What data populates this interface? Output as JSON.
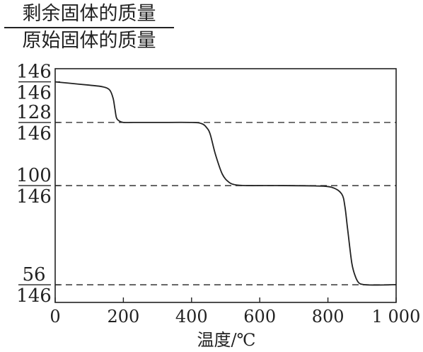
{
  "chart_data": {
    "type": "line",
    "ylabel_numerator": "剩余固体的质量",
    "ylabel_denominator": "原始固体的质量",
    "xlabel": "温度/℃",
    "xlim": [
      0,
      1000
    ],
    "ylim": [
      0.33,
      1.04
    ],
    "x_ticks": [
      0,
      200,
      400,
      600,
      800,
      1000
    ],
    "x_tick_labels": [
      "0",
      "200",
      "400",
      "600",
      "800",
      "1 000"
    ],
    "y_ticks": [
      {
        "num": "146",
        "den": "146",
        "value": 1.0
      },
      {
        "num": "128",
        "den": "146",
        "value": 0.8767
      },
      {
        "num": "100",
        "den": "146",
        "value": 0.6849
      },
      {
        "num": "56",
        "den": "146",
        "value": 0.3836
      }
    ],
    "reference_lines": [
      {
        "y": 0.8767,
        "style": "dashed"
      },
      {
        "y": 0.6849,
        "style": "dashed"
      },
      {
        "y": 0.3836,
        "style": "dashed"
      }
    ],
    "series": [
      {
        "x": [
          0,
          50,
          100,
          140,
          160,
          170,
          175,
          180,
          190,
          200,
          230,
          300,
          400,
          430,
          445,
          455,
          470,
          490,
          510,
          530,
          560,
          650,
          760,
          810,
          840,
          850,
          858,
          870,
          880,
          890,
          900,
          920,
          960,
          1000
        ],
        "y": [
          1.0,
          0.995,
          0.99,
          0.985,
          0.975,
          0.95,
          0.92,
          0.89,
          0.88,
          0.8767,
          0.8767,
          0.8767,
          0.8767,
          0.873,
          0.86,
          0.84,
          0.78,
          0.72,
          0.695,
          0.687,
          0.685,
          0.685,
          0.684,
          0.68,
          0.66,
          0.62,
          0.55,
          0.45,
          0.41,
          0.39,
          0.385,
          0.383,
          0.383,
          0.384
        ]
      }
    ]
  }
}
